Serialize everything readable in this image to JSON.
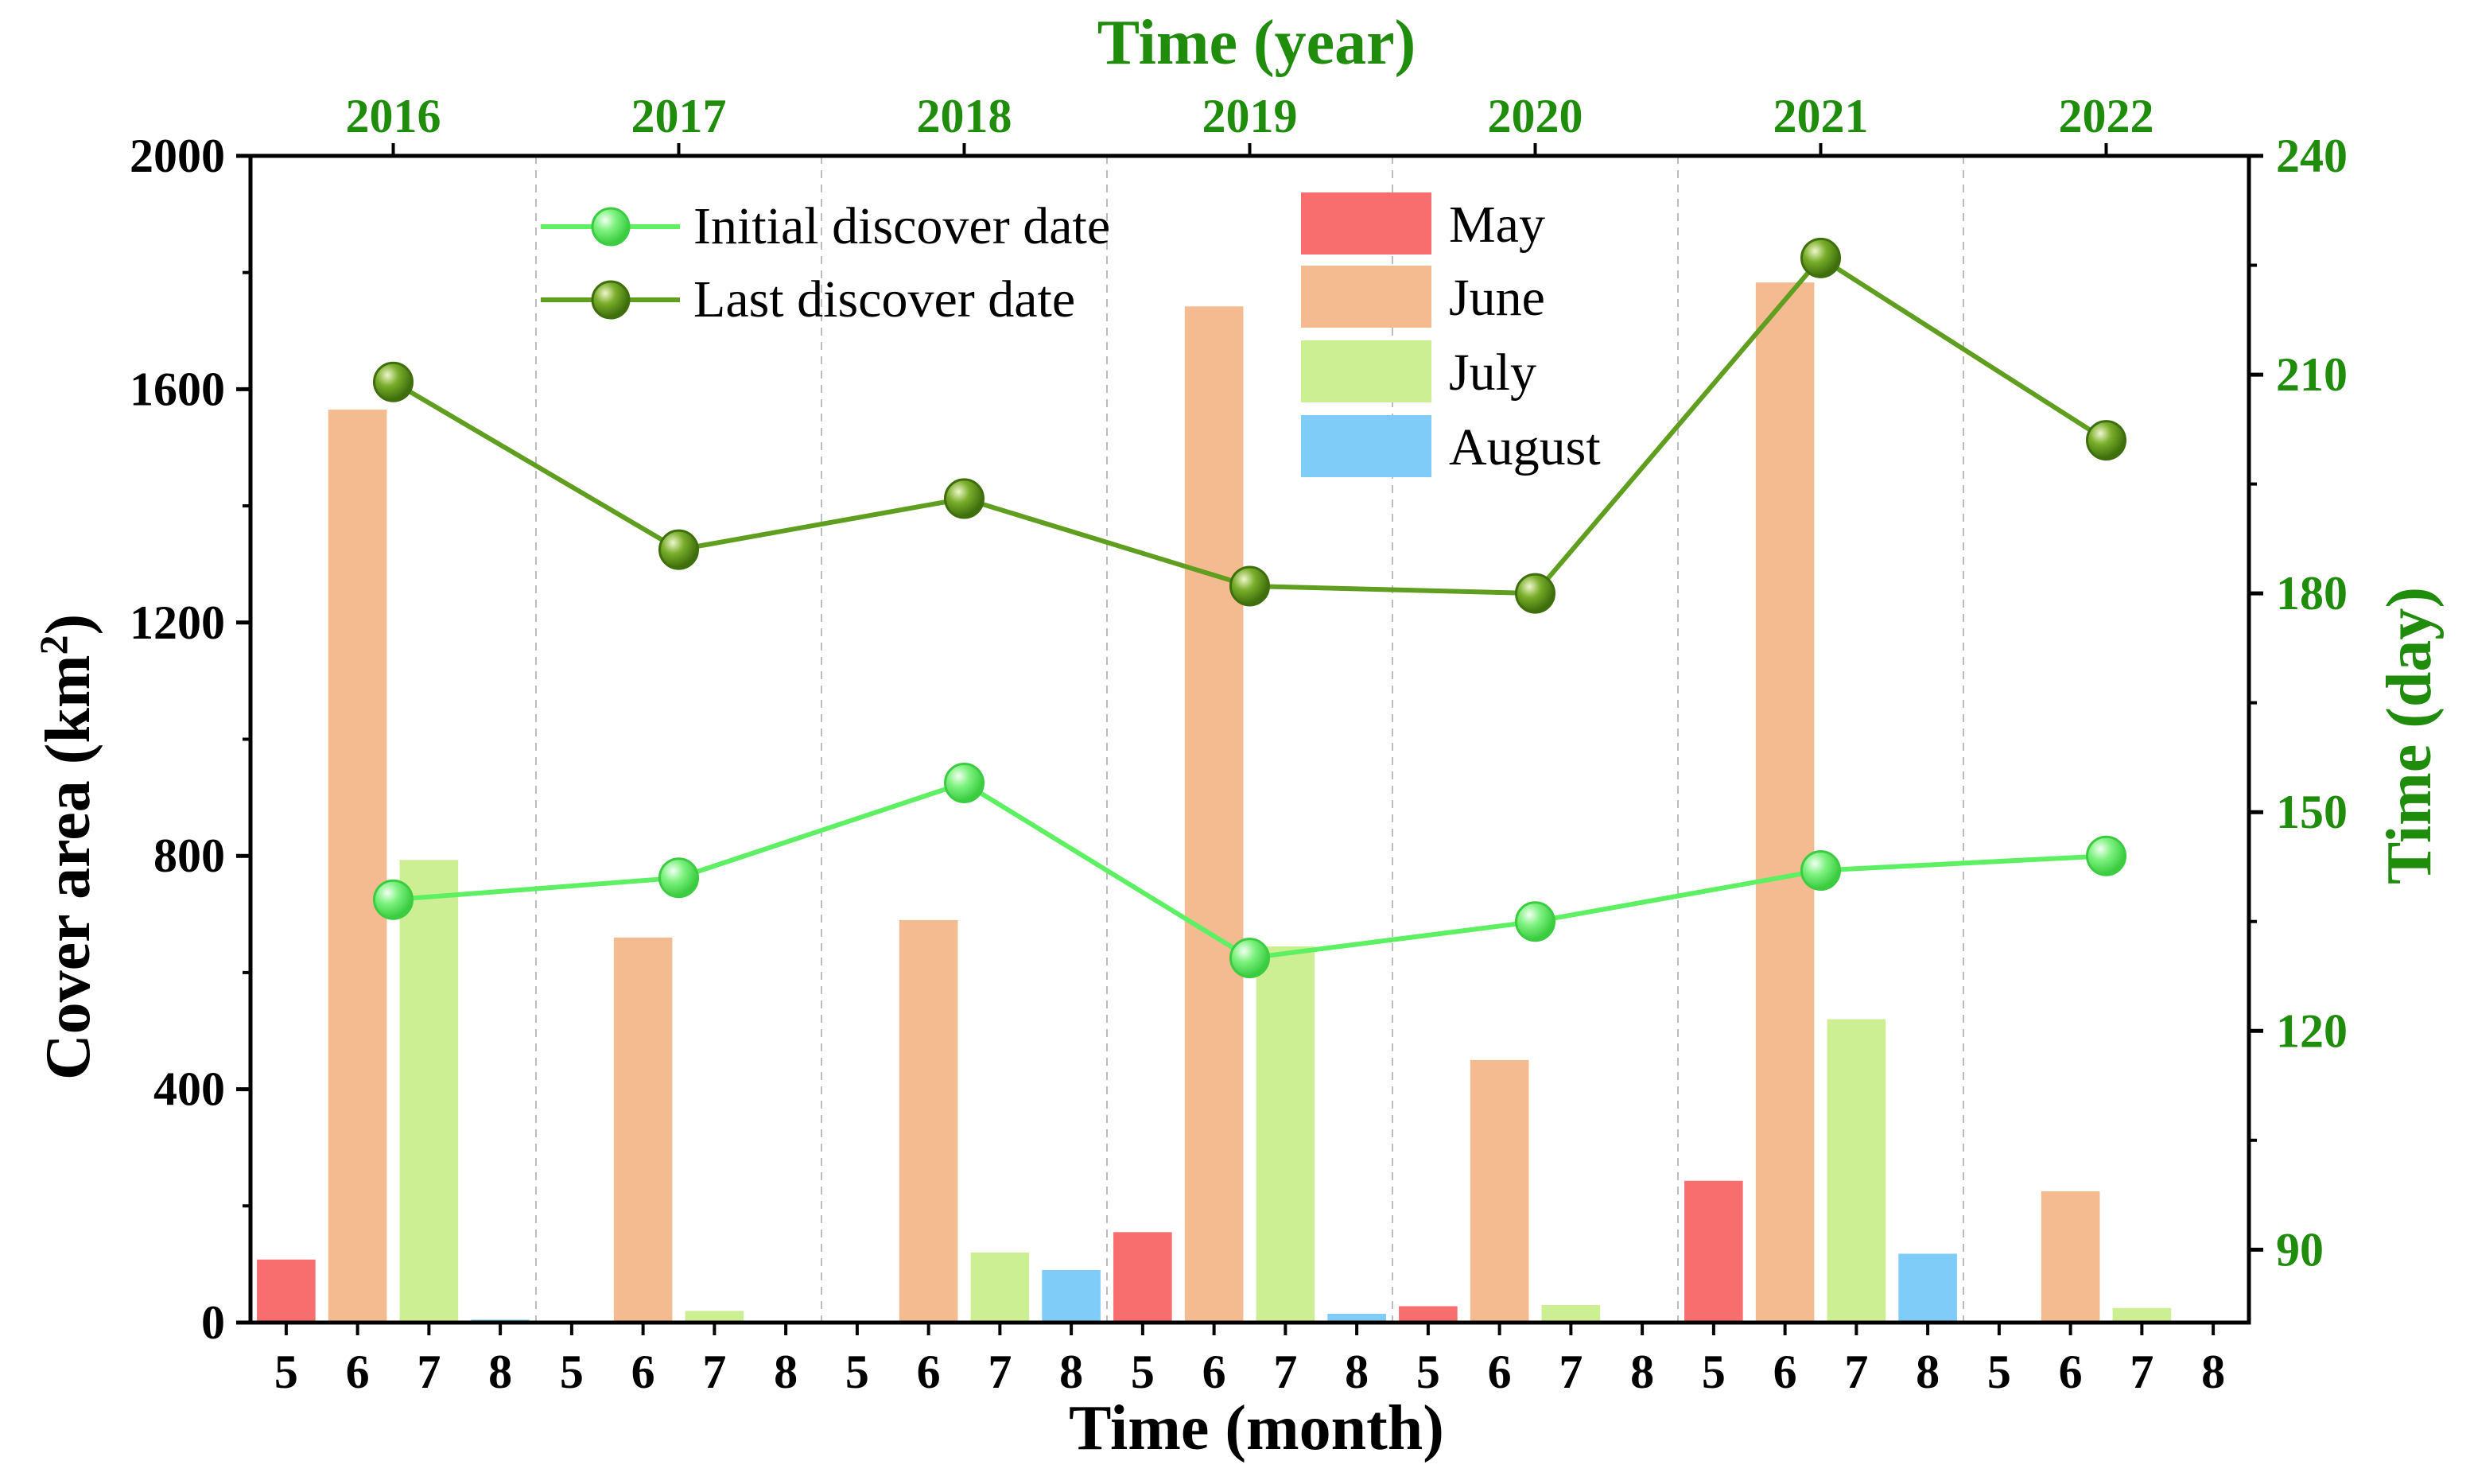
{
  "chart_data": {
    "type": "bar",
    "title": "Time (year)",
    "xlabel": "Time (month)",
    "ylabel": "Cover area (km²)",
    "ylabel_main": "Cover area (km",
    "ylabel_sup": "2",
    "ylabel_end": ")",
    "y2label": "Time (day)",
    "ylim": [
      0,
      2000
    ],
    "y_ticks": [
      "0",
      "400",
      "800",
      "1200",
      "1600",
      "2000"
    ],
    "y2lim": [
      80,
      240
    ],
    "y2_ticks": [
      "90",
      "120",
      "150",
      "180",
      "210",
      "240"
    ],
    "years": [
      "2016",
      "2017",
      "2018",
      "2019",
      "2020",
      "2021",
      "2022"
    ],
    "months": [
      "5",
      "6",
      "7",
      "8"
    ],
    "bar_series": [
      {
        "name": "May",
        "color": "#f86e6e",
        "values": [
          108,
          3,
          0,
          155,
          28,
          243,
          3
        ]
      },
      {
        "name": "June",
        "color": "#f5bb90",
        "values": [
          1565,
          660,
          690,
          1742,
          450,
          1783,
          225
        ]
      },
      {
        "name": "July",
        "color": "#cdef93",
        "values": [
          793,
          20,
          120,
          645,
          30,
          520,
          25
        ]
      },
      {
        "name": "August",
        "color": "#7fccf8",
        "values": [
          5,
          2,
          90,
          15,
          2,
          118,
          3
        ]
      }
    ],
    "line_series": [
      {
        "name": "Initial discover date",
        "color": "#5cf062",
        "values": [
          138,
          141,
          154,
          130,
          135,
          142,
          144
        ]
      },
      {
        "name": "Last discover date",
        "color": "#5f9e1f",
        "values": [
          209,
          186,
          193,
          181,
          180,
          226,
          201
        ]
      }
    ],
    "legend_position": "top-center",
    "colors": {
      "axis_green": "#1f8c0c",
      "axis_black": "#000000"
    }
  }
}
